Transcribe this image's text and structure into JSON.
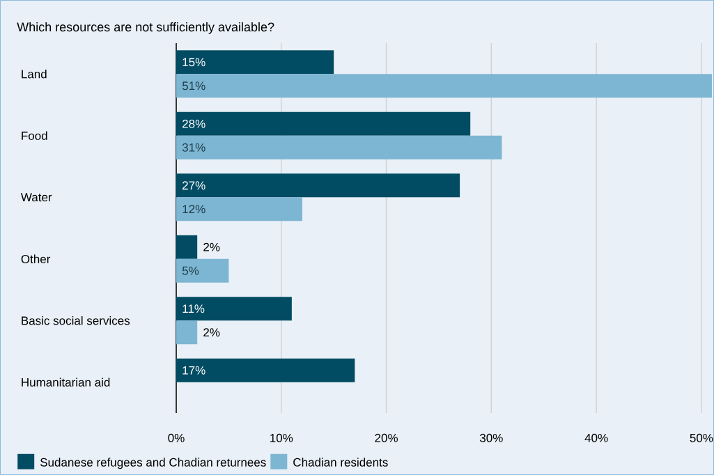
{
  "chart_data": {
    "type": "bar",
    "orientation": "horizontal",
    "title": "Which resources are not sufficiently available?",
    "categories": [
      "Land",
      "Food",
      "Water",
      "Other",
      "Basic social services",
      "Humanitarian aid"
    ],
    "series": [
      {
        "name": "Sudanese refugees and Chadian returnees",
        "color": "#024c63",
        "values": [
          15,
          28,
          27,
          2,
          11,
          17
        ],
        "value_labels": [
          "15%",
          "28%",
          "27%",
          "2%",
          "11%",
          "17%"
        ]
      },
      {
        "name": "Chadian residents",
        "color": "#7db6d2",
        "values": [
          51,
          31,
          12,
          5,
          2,
          null
        ],
        "value_labels": [
          "51%",
          "31%",
          "12%",
          "5%",
          "2%",
          null
        ]
      }
    ],
    "xlim": [
      0,
      51.2
    ],
    "xticks": [
      {
        "value": 0,
        "label": "0%"
      },
      {
        "value": 10,
        "label": "10%"
      },
      {
        "value": 20,
        "label": "20%"
      },
      {
        "value": 30,
        "label": "30%"
      },
      {
        "value": 40,
        "label": "40%"
      },
      {
        "value": 50,
        "label": "50%"
      }
    ],
    "grid": "x",
    "legend": "bottom left"
  }
}
